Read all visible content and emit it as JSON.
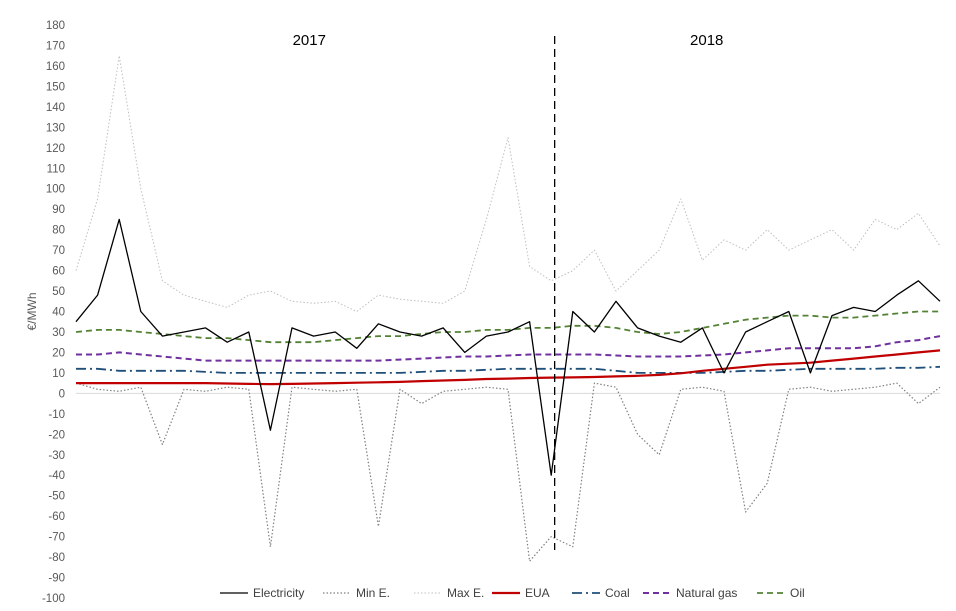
{
  "chart_data": {
    "type": "line",
    "ylabel": "€/MWh",
    "ylim": [
      -100,
      180
    ],
    "yticks": [
      180,
      170,
      160,
      150,
      140,
      130,
      120,
      110,
      100,
      90,
      80,
      70,
      60,
      50,
      40,
      30,
      20,
      10,
      0,
      -10,
      -20,
      -30,
      -40,
      -50,
      -60,
      -70,
      -80,
      -90,
      -100
    ],
    "grid": false,
    "legend_position": "bottom",
    "annotations": [
      {
        "text": "2017",
        "x": 0.27
      },
      {
        "text": "2018",
        "x": 0.73
      }
    ],
    "year_divider": 0.554,
    "x": [
      0,
      0.025,
      0.05,
      0.075,
      0.1,
      0.125,
      0.15,
      0.175,
      0.2,
      0.225,
      0.25,
      0.275,
      0.3,
      0.325,
      0.35,
      0.375,
      0.4,
      0.425,
      0.45,
      0.475,
      0.5,
      0.525,
      0.55,
      0.575,
      0.6,
      0.625,
      0.65,
      0.675,
      0.7,
      0.725,
      0.75,
      0.775,
      0.8,
      0.825,
      0.85,
      0.875,
      0.9,
      0.925,
      0.95,
      0.975,
      1
    ],
    "series": [
      {
        "name": "Electricity",
        "color": "#000000",
        "style": "solid",
        "values": [
          35,
          48,
          85,
          40,
          28,
          30,
          32,
          25,
          30,
          -18,
          32,
          28,
          30,
          22,
          34,
          30,
          28,
          32,
          20,
          28,
          30,
          35,
          -40,
          40,
          30,
          45,
          32,
          28,
          25,
          32,
          10,
          30,
          35,
          40,
          10,
          38,
          42,
          40,
          48,
          55,
          45
        ]
      },
      {
        "name": "Min E.",
        "color": "#808080",
        "style": "dotted",
        "values": [
          5,
          2,
          1,
          3,
          -25,
          2,
          1,
          3,
          2,
          -75,
          3,
          2,
          1,
          2,
          -65,
          2,
          -5,
          1,
          2,
          3,
          2,
          -82,
          -70,
          -75,
          5,
          3,
          -20,
          -30,
          2,
          3,
          1,
          -58,
          -44,
          2,
          3,
          1,
          2,
          3,
          5,
          -5,
          3
        ]
      },
      {
        "name": "Max E.",
        "color": "#bfbfbf",
        "style": "dotted",
        "values": [
          60,
          95,
          165,
          100,
          55,
          48,
          45,
          42,
          48,
          50,
          45,
          44,
          45,
          40,
          48,
          46,
          45,
          44,
          50,
          85,
          125,
          62,
          55,
          60,
          70,
          50,
          60,
          70,
          95,
          65,
          75,
          70,
          80,
          70,
          75,
          80,
          70,
          85,
          80,
          88,
          72
        ]
      },
      {
        "name": "EUA",
        "color": "#c00000",
        "style": "solid",
        "values": [
          5,
          5,
          5,
          5,
          5,
          5,
          5,
          4.8,
          4.6,
          4.5,
          4.6,
          4.8,
          5,
          5.2,
          5.4,
          5.6,
          6,
          6.3,
          6.6,
          7,
          7.2,
          7.5,
          7.7,
          7.8,
          8,
          8.3,
          8.6,
          9,
          9.8,
          11,
          12,
          13,
          14,
          14.5,
          15,
          16,
          17,
          18,
          19,
          20,
          21
        ]
      },
      {
        "name": "Coal",
        "color": "#1f4e79",
        "style": "dashdot",
        "values": [
          12,
          12,
          11,
          11,
          11,
          11,
          10.5,
          10,
          10,
          10,
          10,
          10,
          10,
          10,
          10,
          10,
          10.5,
          11,
          11,
          11.5,
          12,
          12,
          12,
          12,
          12,
          11,
          10,
          10,
          10,
          10,
          10.5,
          11,
          11,
          11.5,
          12,
          12,
          12,
          12,
          12.5,
          12.5,
          13
        ]
      },
      {
        "name": "Natural gas",
        "color": "#7030a0",
        "style": "dashed",
        "values": [
          19,
          19,
          20,
          19,
          18,
          17,
          16,
          16,
          16,
          16,
          16,
          16,
          16,
          16,
          16,
          16.5,
          17,
          17.5,
          18,
          18,
          18.5,
          19,
          19,
          19,
          19,
          18.5,
          18,
          18,
          18,
          18.5,
          19,
          20,
          21,
          22,
          22,
          22,
          22,
          23,
          25,
          26,
          28
        ]
      },
      {
        "name": "Oil",
        "color": "#548235",
        "style": "dashed",
        "values": [
          30,
          31,
          31,
          30,
          29,
          28,
          27,
          27,
          26,
          25,
          25,
          25,
          26,
          27,
          28,
          28,
          29,
          30,
          30,
          31,
          31,
          32,
          32,
          33,
          33,
          32,
          30,
          29,
          30,
          32,
          34,
          36,
          37,
          38,
          38,
          37,
          37,
          38,
          39,
          40,
          40
        ]
      }
    ]
  }
}
